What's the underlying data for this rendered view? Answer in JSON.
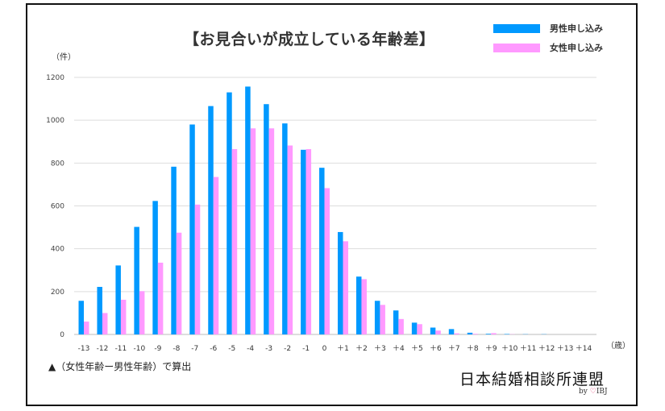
{
  "chart_data": {
    "type": "bar",
    "title": "【お見合いが成立している年齢差】",
    "ylabel": "（件）",
    "xlabel": "（歳）",
    "ylim": [
      0,
      1200
    ],
    "yticks": [
      "0",
      "200",
      "400",
      "600",
      "800",
      "1000",
      "1200"
    ],
    "categories": [
      "-13",
      "-12",
      "-11",
      "-10",
      "-9",
      "-8",
      "-7",
      "-6",
      "-5",
      "-4",
      "-3",
      "-2",
      "-1",
      "0",
      "＋1",
      "＋2",
      "＋3",
      "＋4",
      "＋5",
      "＋6",
      "＋7",
      "＋8",
      "＋9",
      "＋10",
      "＋11",
      "＋12",
      "＋13",
      "＋14"
    ],
    "series": [
      {
        "name": "男性申し込み",
        "color": "#0099ff",
        "values": [
          157,
          222,
          322,
          502,
          623,
          783,
          980,
          1066,
          1130,
          1157,
          1075,
          985,
          862,
          778,
          478,
          270,
          157,
          112,
          55,
          32,
          25,
          8,
          3,
          2,
          1,
          1,
          0,
          0
        ]
      },
      {
        "name": "女性申し込み",
        "color": "#ff99ff",
        "values": [
          60,
          100,
          162,
          202,
          335,
          475,
          606,
          735,
          865,
          962,
          962,
          882,
          865,
          683,
          435,
          258,
          138,
          72,
          48,
          18,
          5,
          3,
          6,
          1,
          0,
          0,
          0,
          0
        ]
      }
    ],
    "legend_position": "top-right",
    "grid": true
  },
  "note": "▲（女性年齢ー男性年齢）で算出",
  "logo": {
    "name": "日本結婚相談所連盟",
    "by": "by",
    "brand": "IBJ"
  }
}
